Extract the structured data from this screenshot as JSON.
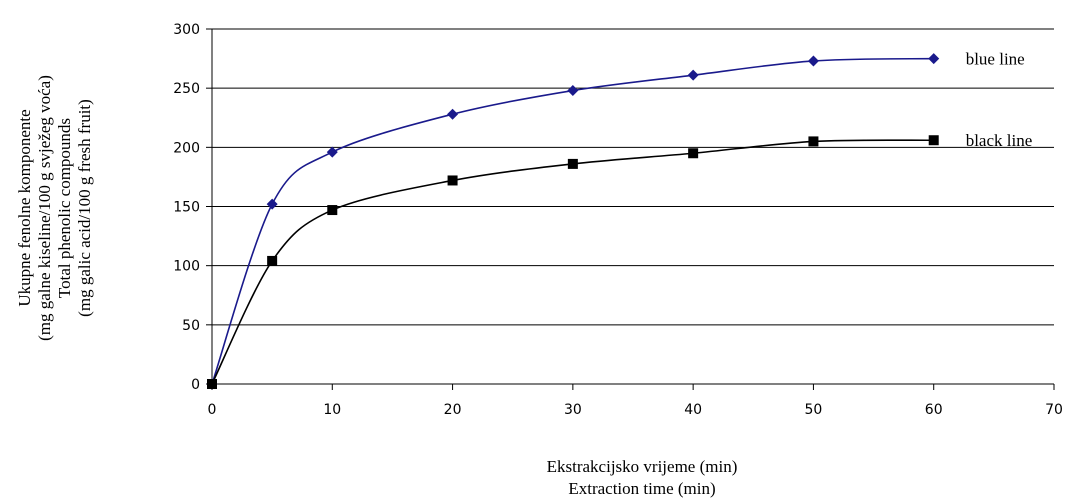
{
  "chart_data": {
    "type": "line",
    "ylabel": [
      "Ukupne  fenolne  komponente",
      "(mg galne kiseline/100 g svježeg  voća)",
      "Total phenolic compounds",
      "(mg galic acid/100 g fresh fruit)"
    ],
    "xlabel": [
      "Ekstrakcijsko vrijeme (min)",
      "Extraction time (min)"
    ],
    "xlim": [
      0,
      70
    ],
    "ylim": [
      0,
      300
    ],
    "xticks": [
      0,
      10,
      20,
      30,
      40,
      50,
      60,
      70
    ],
    "yticks": [
      0,
      50,
      100,
      150,
      200,
      250,
      300
    ],
    "grid": "horizontal",
    "series": [
      {
        "name": "blue line",
        "color": "#1a1a8c",
        "marker": "diamond",
        "x": [
          0,
          5,
          10,
          20,
          30,
          40,
          50,
          60
        ],
        "y": [
          0,
          152,
          196,
          228,
          248,
          261,
          273,
          275
        ]
      },
      {
        "name": "black line",
        "color": "#000000",
        "marker": "square",
        "x": [
          0,
          5,
          10,
          20,
          30,
          40,
          50,
          60
        ],
        "y": [
          0,
          104,
          147,
          172,
          186,
          195,
          205,
          206
        ]
      }
    ]
  }
}
